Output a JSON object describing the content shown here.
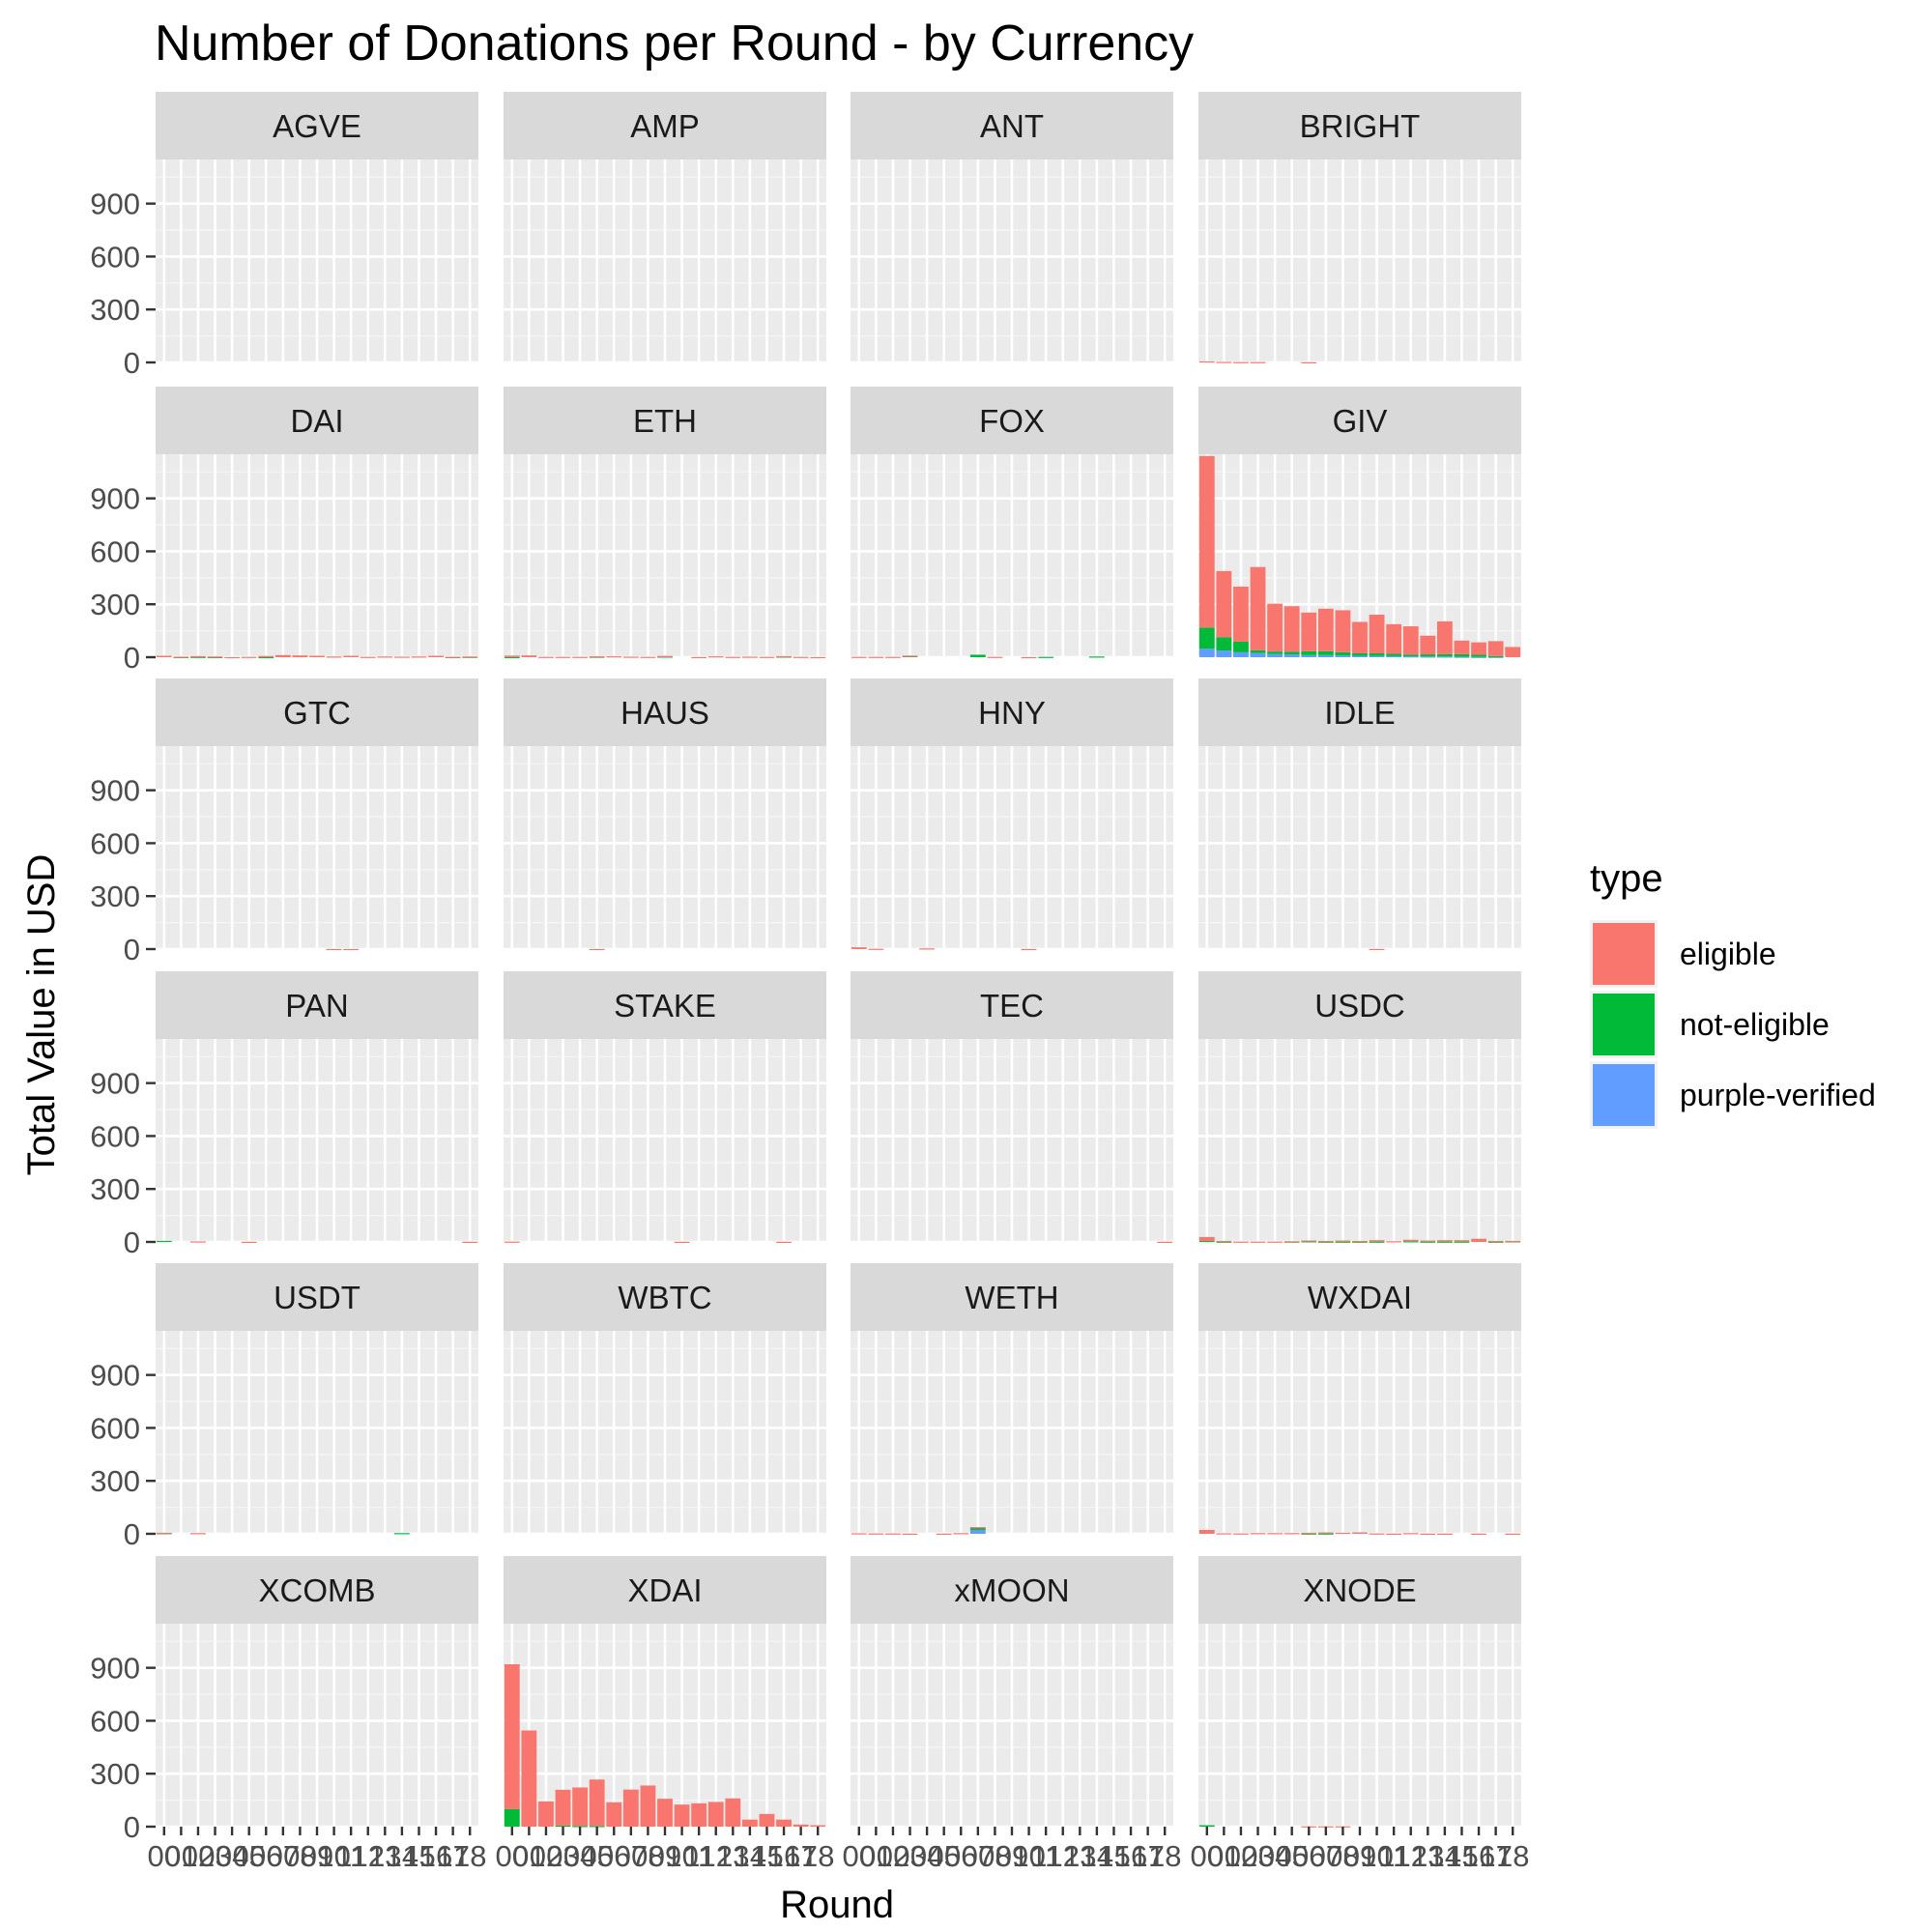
{
  "chart_data": {
    "type": "bar",
    "stacked": true,
    "faceted": true,
    "title": "Number of Donations per Round - by Currency",
    "xlabel": "Round",
    "ylabel": "Total Value in USD",
    "ylim": [
      0,
      1150
    ],
    "y_ticks": [
      "0",
      "300",
      "600",
      "900"
    ],
    "x_tick_labels": [
      "00",
      "01",
      "02",
      "03",
      "04",
      "05",
      "06",
      "07",
      "08",
      "09",
      "10",
      "11",
      "12",
      "13",
      "14",
      "15",
      "16",
      "17",
      "18"
    ],
    "grid": true,
    "legend": {
      "title": "type",
      "position": "right",
      "entries": [
        {
          "label": "eligible",
          "color": "#F8766D"
        },
        {
          "label": "not-eligible",
          "color": "#00BA38"
        },
        {
          "label": "purple-verified",
          "color": "#619CFF"
        }
      ]
    },
    "series_names": [
      "eligible",
      "not-eligible",
      "purple-verified"
    ],
    "panels": [
      {
        "name": "AGVE",
        "values": {}
      },
      {
        "name": "AMP",
        "values": {}
      },
      {
        "name": "ANT",
        "values": {}
      },
      {
        "name": "BRIGHT",
        "values": {
          "eligible": [
            6,
            3,
            2,
            2,
            0,
            0,
            1,
            0,
            0,
            0,
            0,
            0,
            0,
            0,
            0,
            0,
            0,
            0,
            0
          ]
        }
      },
      {
        "name": "DAI",
        "values": {
          "eligible": [
            8,
            2,
            4,
            3,
            1,
            2,
            6,
            12,
            10,
            8,
            4,
            8,
            2,
            4,
            3,
            4,
            8,
            1,
            2
          ],
          "not-eligible": [
            0,
            1,
            2,
            1,
            0,
            0,
            1,
            0,
            0,
            0,
            0,
            0,
            0,
            0,
            0,
            0,
            0,
            1,
            2
          ]
        }
      },
      {
        "name": "ETH",
        "values": {
          "eligible": [
            8,
            10,
            2,
            2,
            2,
            2,
            5,
            3,
            2,
            3,
            0,
            1,
            5,
            2,
            3,
            2,
            2,
            2,
            1
          ],
          "not-eligible": [
            1,
            0,
            0,
            0,
            0,
            3,
            0,
            0,
            0,
            4,
            0,
            0,
            0,
            0,
            0,
            0,
            4,
            0,
            0
          ]
        }
      },
      {
        "name": "FOX",
        "values": {
          "eligible": [
            2,
            2,
            2,
            1,
            0,
            0,
            0,
            0,
            2,
            0,
            1,
            0,
            0,
            0,
            0,
            0,
            0,
            0,
            0
          ],
          "not-eligible": [
            0,
            0,
            0,
            8,
            0,
            0,
            0,
            14,
            0,
            0,
            0,
            2,
            0,
            0,
            4,
            0,
            0,
            0,
            0
          ]
        }
      },
      {
        "name": "GIV",
        "values": {
          "eligible": [
            972,
            375,
            312,
            472,
            271,
            258,
            219,
            241,
            238,
            178,
            219,
            168,
            160,
            106,
            186,
            77,
            70,
            84,
            58
          ],
          "not-eligible": [
            120,
            75,
            60,
            15,
            14,
            15,
            22,
            22,
            18,
            14,
            15,
            13,
            10,
            12,
            13,
            14,
            12,
            5,
            0
          ],
          "purple-verified": [
            48,
            38,
            28,
            24,
            18,
            16,
            12,
            12,
            10,
            8,
            7,
            6,
            5,
            4,
            4,
            3,
            2,
            2,
            0
          ]
        }
      },
      {
        "name": "GTC",
        "values": {
          "eligible": [
            0,
            0,
            0,
            0,
            0,
            0,
            0,
            0,
            0,
            0,
            1,
            1,
            0,
            0,
            0,
            0,
            0,
            0,
            0
          ]
        }
      },
      {
        "name": "HAUS",
        "values": {
          "eligible": [
            0,
            0,
            0,
            0,
            0,
            1,
            0,
            0,
            0,
            0,
            0,
            0,
            0,
            0,
            0,
            0,
            0,
            0,
            0
          ]
        }
      },
      {
        "name": "HNY",
        "values": {
          "eligible": [
            10,
            2,
            0,
            0,
            4,
            0,
            0,
            0,
            0,
            0,
            1,
            0,
            0,
            0,
            0,
            0,
            0,
            0,
            0
          ]
        }
      },
      {
        "name": "IDLE",
        "values": {
          "eligible": [
            0,
            0,
            0,
            0,
            0,
            0,
            0,
            0,
            0,
            0,
            1,
            0,
            0,
            0,
            0,
            0,
            0,
            0,
            0
          ]
        }
      },
      {
        "name": "PAN",
        "values": {
          "eligible": [
            0,
            0,
            3,
            0,
            0,
            1,
            0,
            0,
            0,
            0,
            0,
            0,
            0,
            0,
            0,
            0,
            0,
            0,
            1
          ],
          "not-eligible": [
            6,
            0,
            0,
            0,
            0,
            0,
            0,
            0,
            0,
            0,
            0,
            0,
            0,
            0,
            0,
            0,
            0,
            0,
            0
          ]
        }
      },
      {
        "name": "STAKE",
        "values": {
          "eligible": [
            2,
            0,
            0,
            0,
            0,
            0,
            0,
            0,
            0,
            0,
            1,
            0,
            0,
            0,
            0,
            0,
            1,
            0,
            0
          ]
        }
      },
      {
        "name": "TEC",
        "values": {
          "eligible": [
            0,
            0,
            0,
            0,
            0,
            0,
            0,
            0,
            0,
            0,
            0,
            0,
            0,
            0,
            0,
            0,
            0,
            0,
            1
          ]
        }
      },
      {
        "name": "USDC",
        "values": {
          "eligible": [
            22,
            4,
            2,
            2,
            2,
            2,
            4,
            4,
            6,
            4,
            8,
            4,
            8,
            6,
            8,
            8,
            18,
            4,
            2
          ],
          "not-eligible": [
            6,
            2,
            0,
            0,
            0,
            2,
            4,
            2,
            2,
            2,
            2,
            0,
            4,
            2,
            2,
            2,
            0,
            2,
            4
          ]
        }
      },
      {
        "name": "USDT",
        "values": {
          "eligible": [
            2,
            0,
            4,
            0,
            0,
            0,
            0,
            0,
            0,
            0,
            0,
            0,
            0,
            0,
            0,
            0,
            0,
            0,
            0
          ],
          "not-eligible": [
            4,
            0,
            0,
            0,
            0,
            0,
            0,
            0,
            0,
            0,
            0,
            0,
            0,
            0,
            4,
            0,
            0,
            0,
            0
          ]
        }
      },
      {
        "name": "WBTC",
        "values": {}
      },
      {
        "name": "WETH",
        "values": {
          "eligible": [
            3,
            2,
            2,
            1,
            0,
            1,
            4,
            2,
            0,
            0,
            0,
            0,
            0,
            0,
            0,
            0,
            0,
            0,
            0
          ],
          "not-eligible": [
            0,
            0,
            0,
            0,
            0,
            0,
            0,
            14,
            0,
            0,
            0,
            0,
            0,
            0,
            0,
            0,
            0,
            0,
            0
          ],
          "purple-verified": [
            0,
            0,
            0,
            0,
            0,
            0,
            0,
            22,
            0,
            0,
            0,
            0,
            0,
            0,
            0,
            0,
            0,
            0,
            0
          ]
        }
      },
      {
        "name": "WXDAI",
        "values": {
          "eligible": [
            22,
            3,
            2,
            4,
            4,
            4,
            4,
            6,
            6,
            8,
            2,
            1,
            4,
            1,
            1,
            0,
            1,
            0,
            1
          ],
          "not-eligible": [
            0,
            0,
            0,
            0,
            0,
            0,
            2,
            2,
            0,
            0,
            0,
            0,
            0,
            0,
            0,
            0,
            0,
            0,
            0
          ]
        }
      },
      {
        "name": "XCOMB",
        "values": {}
      },
      {
        "name": "XDAI",
        "values": {
          "eligible": [
            820,
            545,
            143,
            203,
            218,
            263,
            138,
            210,
            233,
            158,
            125,
            132,
            140,
            160,
            40,
            72,
            40,
            12,
            8
          ],
          "not-eligible": [
            100,
            0,
            0,
            6,
            4,
            4,
            0,
            0,
            0,
            0,
            0,
            0,
            0,
            0,
            0,
            0,
            0,
            0,
            0
          ]
        }
      },
      {
        "name": "xMOON",
        "values": {}
      },
      {
        "name": "XNODE",
        "values": {
          "eligible": [
            0,
            0,
            0,
            0,
            0,
            0,
            2,
            2,
            2,
            0,
            0,
            0,
            0,
            0,
            0,
            0,
            0,
            0,
            0
          ],
          "not-eligible": [
            8,
            0,
            0,
            0,
            0,
            0,
            0,
            0,
            0,
            0,
            0,
            0,
            0,
            0,
            0,
            0,
            0,
            0,
            0
          ]
        }
      }
    ]
  }
}
